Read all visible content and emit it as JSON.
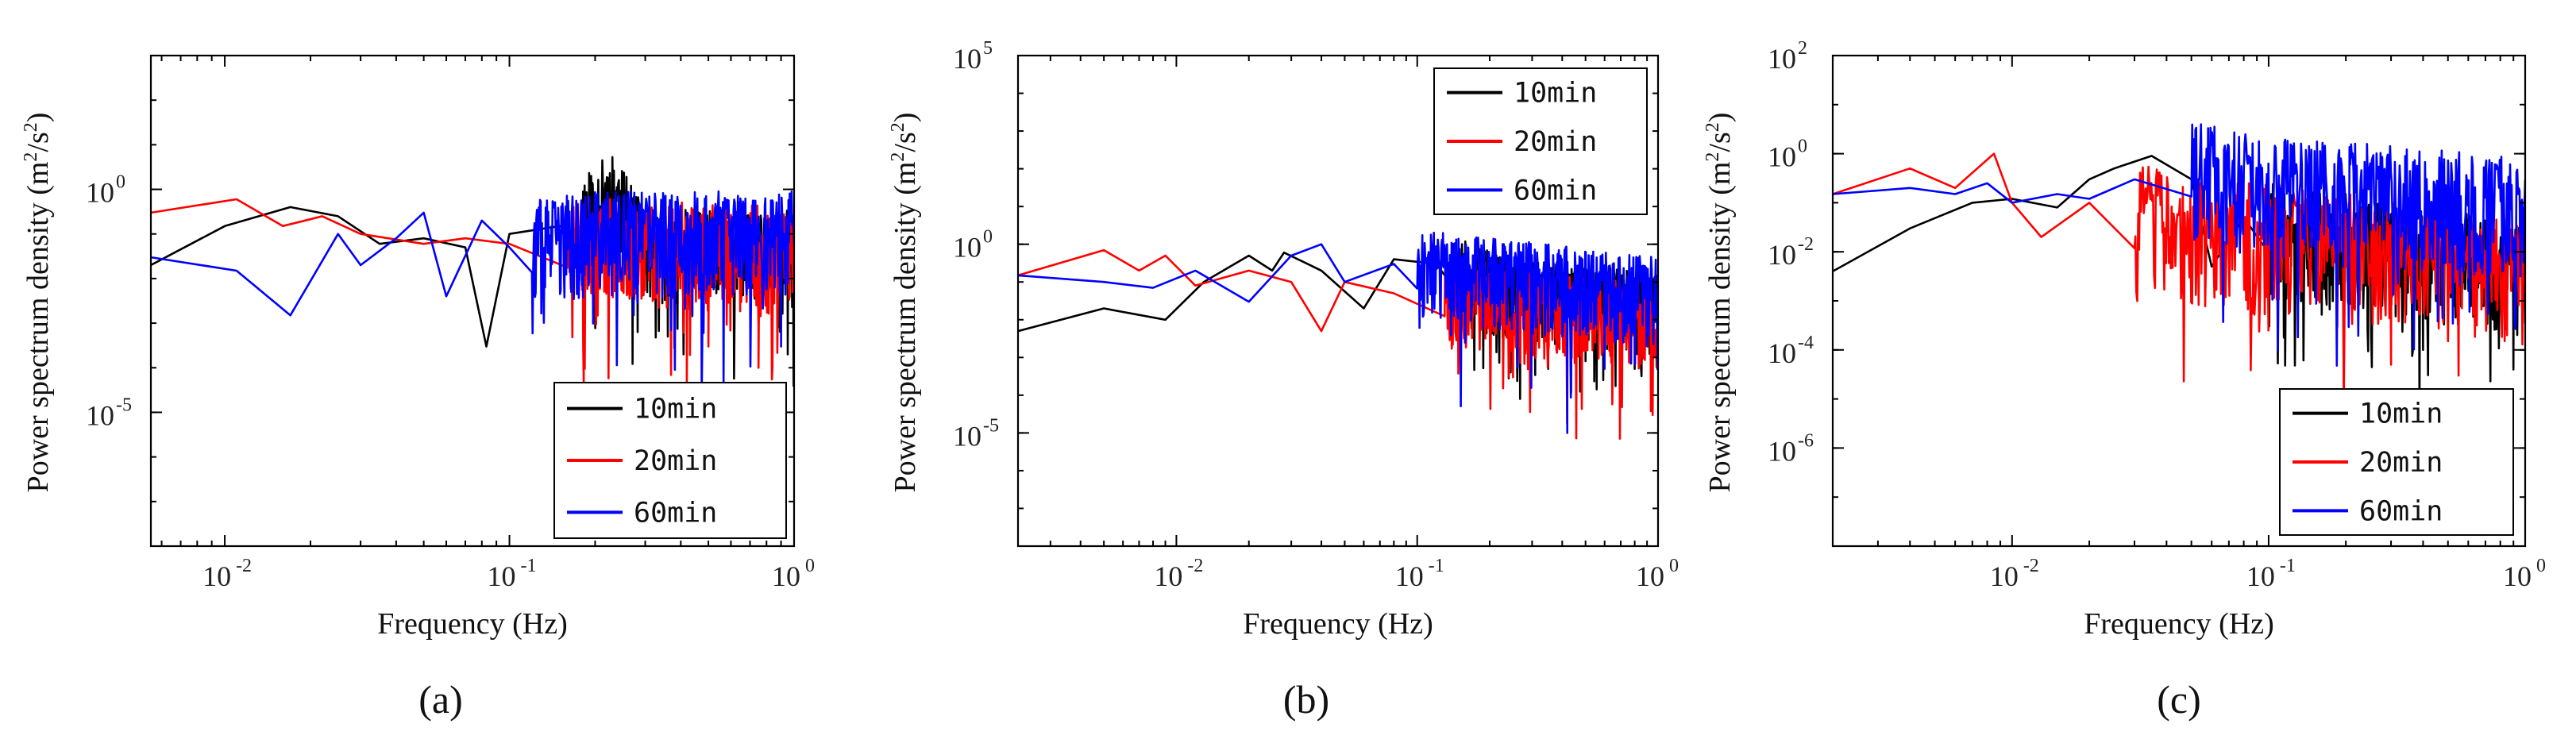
{
  "chart_data": [
    {
      "type": "line",
      "panel_label": "(a)",
      "xlabel": "Frequency (Hz)",
      "ylabel": "Power spectrum density (m",
      "ylabel_sup1": "2",
      "ylabel_mid": "/s",
      "ylabel_sup2": "2",
      "ylabel_end": ")",
      "xscale": "log",
      "yscale": "log",
      "xlim": [
        0.0055,
        1.0
      ],
      "ylim": [
        1e-08,
        1000
      ],
      "xticks": [
        {
          "v": 0.01,
          "base": "10",
          "exp": "-2"
        },
        {
          "v": 0.1,
          "base": "10",
          "exp": "-1"
        },
        {
          "v": 1,
          "base": "10",
          "exp": "0"
        }
      ],
      "yticks": [
        {
          "v": 1e-05,
          "base": "10",
          "exp": "-5"
        },
        {
          "v": 1,
          "base": "10",
          "exp": "0"
        }
      ],
      "legend_position": "bottom-right",
      "series": [
        {
          "name": "10min",
          "color": "#000000",
          "seed": 11,
          "anchors": [
            [
              0.0055,
              0.02
            ],
            [
              0.01,
              0.15
            ],
            [
              0.017,
              0.4
            ],
            [
              0.025,
              0.25
            ],
            [
              0.035,
              0.06
            ],
            [
              0.05,
              0.08
            ],
            [
              0.07,
              0.05
            ],
            [
              0.083,
              0.0003
            ],
            [
              0.1,
              0.1
            ],
            [
              0.15,
              0.15
            ],
            [
              0.23,
              1.0
            ],
            [
              0.3,
              0.05
            ],
            [
              0.5,
              0.05
            ],
            [
              1.0,
              0.05
            ]
          ],
          "noise_start": 0.18,
          "noise_amp": 1.4,
          "dips": [
            [
              0.36,
              0.0005
            ],
            [
              0.95,
              0.0002
            ]
          ]
        },
        {
          "name": "20min",
          "color": "#ff0000",
          "seed": 23,
          "anchors": [
            [
              0.0055,
              0.3
            ],
            [
              0.011,
              0.6
            ],
            [
              0.016,
              0.15
            ],
            [
              0.022,
              0.25
            ],
            [
              0.03,
              0.1
            ],
            [
              0.05,
              0.06
            ],
            [
              0.07,
              0.08
            ],
            [
              0.1,
              0.06
            ],
            [
              0.2,
              0.08
            ],
            [
              1.0,
              0.05
            ]
          ],
          "noise_start": 0.16,
          "noise_amp": 1.5,
          "dips": [
            [
              0.42,
              4e-05
            ],
            [
              0.5,
              0.0003
            ],
            [
              0.75,
              0.0001
            ]
          ]
        },
        {
          "name": "60min",
          "color": "#0000ff",
          "seed": 37,
          "anchors": [
            [
              0.0055,
              0.03
            ],
            [
              0.011,
              0.015
            ],
            [
              0.017,
              0.0015
            ],
            [
              0.025,
              0.1
            ],
            [
              0.03,
              0.02
            ],
            [
              0.04,
              0.08
            ],
            [
              0.05,
              0.3
            ],
            [
              0.06,
              0.004
            ],
            [
              0.08,
              0.2
            ],
            [
              0.1,
              0.05
            ],
            [
              0.2,
              0.1
            ],
            [
              1.0,
              0.1
            ]
          ],
          "noise_start": 0.12,
          "noise_amp": 1.6,
          "dips": [
            [
              0.9,
              0.0003
            ]
          ]
        }
      ]
    },
    {
      "type": "line",
      "panel_label": "(b)",
      "xlabel": "Frequency (Hz)",
      "ylabel": "Power spectrum density (m",
      "ylabel_sup1": "2",
      "ylabel_mid": "/s",
      "ylabel_sup2": "2",
      "ylabel_end": ")",
      "xscale": "log",
      "yscale": "log",
      "xlim": [
        0.0022,
        1.0
      ],
      "ylim": [
        1e-08,
        100000.0
      ],
      "xticks": [
        {
          "v": 0.01,
          "base": "10",
          "exp": "-2"
        },
        {
          "v": 0.1,
          "base": "10",
          "exp": "-1"
        },
        {
          "v": 1,
          "base": "10",
          "exp": "0"
        }
      ],
      "yticks": [
        {
          "v": 1e-05,
          "base": "10",
          "exp": "-5"
        },
        {
          "v": 1,
          "base": "10",
          "exp": "0"
        },
        {
          "v": 100000.0,
          "base": "10",
          "exp": "5"
        }
      ],
      "legend_position": "top-right",
      "series": [
        {
          "name": "10min",
          "color": "#000000",
          "seed": 51,
          "anchors": [
            [
              0.0022,
              0.005
            ],
            [
              0.005,
              0.02
            ],
            [
              0.009,
              0.01
            ],
            [
              0.013,
              0.1
            ],
            [
              0.02,
              0.5
            ],
            [
              0.025,
              0.2
            ],
            [
              0.028,
              0.6
            ],
            [
              0.04,
              0.2
            ],
            [
              0.06,
              0.02
            ],
            [
              0.08,
              0.4
            ],
            [
              0.12,
              0.3
            ],
            [
              0.2,
              0.08
            ],
            [
              1.0,
              0.02
            ]
          ],
          "noise_start": 0.15,
          "noise_amp": 1.5,
          "dips": [
            [
              0.35,
              0.0005
            ],
            [
              0.5,
              0.0008
            ],
            [
              0.8,
              0.0005
            ]
          ]
        },
        {
          "name": "20min",
          "color": "#ff0000",
          "seed": 63,
          "anchors": [
            [
              0.0022,
              0.15
            ],
            [
              0.005,
              0.7
            ],
            [
              0.007,
              0.2
            ],
            [
              0.009,
              0.5
            ],
            [
              0.012,
              0.08
            ],
            [
              0.02,
              0.2
            ],
            [
              0.03,
              0.1
            ],
            [
              0.04,
              0.005
            ],
            [
              0.05,
              0.1
            ],
            [
              0.08,
              0.05
            ],
            [
              0.15,
              0.05
            ],
            [
              1.0,
              0.01
            ]
          ],
          "noise_start": 0.13,
          "noise_amp": 1.6,
          "dips": [
            [
              0.25,
              0.0003
            ],
            [
              0.42,
              0.0002
            ],
            [
              0.95,
              3e-05
            ]
          ]
        },
        {
          "name": "60min",
          "color": "#0000ff",
          "seed": 77,
          "anchors": [
            [
              0.0022,
              0.15
            ],
            [
              0.005,
              0.1
            ],
            [
              0.008,
              0.07
            ],
            [
              0.012,
              0.2
            ],
            [
              0.02,
              0.03
            ],
            [
              0.03,
              0.5
            ],
            [
              0.04,
              1.0
            ],
            [
              0.05,
              0.1
            ],
            [
              0.08,
              0.3
            ],
            [
              0.15,
              0.2
            ],
            [
              1.0,
              0.05
            ]
          ],
          "noise_start": 0.1,
          "noise_amp": 1.6,
          "dips": [
            [
              0.42,
              1e-05
            ],
            [
              0.6,
              0.0005
            ]
          ]
        }
      ]
    },
    {
      "type": "line",
      "panel_label": "(c)",
      "xlabel": "Frequency (Hz)",
      "ylabel": "Power spectrum density (m",
      "ylabel_sup1": "2",
      "ylabel_mid": "/s",
      "ylabel_sup2": "2",
      "ylabel_end": ")",
      "xscale": "log",
      "yscale": "log",
      "xlim": [
        0.002,
        1.0
      ],
      "ylim": [
        1e-08,
        100
      ],
      "xticks": [
        {
          "v": 0.01,
          "base": "10",
          "exp": "-2"
        },
        {
          "v": 0.1,
          "base": "10",
          "exp": "-1"
        },
        {
          "v": 1,
          "base": "10",
          "exp": "0"
        }
      ],
      "yticks": [
        {
          "v": 1e-06,
          "base": "10",
          "exp": "-6"
        },
        {
          "v": 0.0001,
          "base": "10",
          "exp": "-4"
        },
        {
          "v": 0.01,
          "base": "10",
          "exp": "-2"
        },
        {
          "v": 1,
          "base": "10",
          "exp": "0"
        },
        {
          "v": 100,
          "base": "10",
          "exp": "2"
        }
      ],
      "legend_position": "bottom-right",
      "series": [
        {
          "name": "10min",
          "color": "#000000",
          "seed": 91,
          "anchors": [
            [
              0.002,
              0.004
            ],
            [
              0.004,
              0.03
            ],
            [
              0.007,
              0.1
            ],
            [
              0.01,
              0.12
            ],
            [
              0.015,
              0.08
            ],
            [
              0.02,
              0.3
            ],
            [
              0.025,
              0.5
            ],
            [
              0.035,
              0.9
            ],
            [
              0.05,
              0.3
            ],
            [
              0.06,
              0.005
            ],
            [
              0.08,
              0.05
            ],
            [
              0.15,
              0.02
            ],
            [
              1.0,
              0.005
            ]
          ],
          "noise_start": 0.1,
          "noise_amp": 1.6,
          "dips": [
            [
              0.4,
              0.0001
            ],
            [
              0.9,
              4e-05
            ]
          ]
        },
        {
          "name": "20min",
          "color": "#ff0000",
          "seed": 103,
          "anchors": [
            [
              0.002,
              0.15
            ],
            [
              0.004,
              0.5
            ],
            [
              0.006,
              0.2
            ],
            [
              0.0085,
              1.0
            ],
            [
              0.01,
              0.1
            ],
            [
              0.013,
              0.02
            ],
            [
              0.02,
              0.1
            ],
            [
              0.03,
              0.05
            ],
            [
              0.05,
              0.03
            ],
            [
              0.1,
              0.02
            ],
            [
              0.3,
              0.01
            ],
            [
              1.0,
              0.005
            ]
          ],
          "noise_start": 0.03,
          "noise_amp": 1.8,
          "dips": [
            [
              0.3,
              5e-05
            ],
            [
              0.55,
              3e-05
            ],
            [
              0.85,
              0.0002
            ]
          ]
        },
        {
          "name": "60min",
          "color": "#0000ff",
          "seed": 117,
          "anchors": [
            [
              0.002,
              0.15
            ],
            [
              0.004,
              0.2
            ],
            [
              0.006,
              0.15
            ],
            [
              0.008,
              0.25
            ],
            [
              0.01,
              0.1
            ],
            [
              0.015,
              0.15
            ],
            [
              0.02,
              0.12
            ],
            [
              0.03,
              0.3
            ],
            [
              0.05,
              0.5
            ],
            [
              0.1,
              0.2
            ],
            [
              1.0,
              0.1
            ]
          ],
          "noise_start": 0.05,
          "noise_amp": 1.7,
          "dips": []
        }
      ]
    }
  ]
}
